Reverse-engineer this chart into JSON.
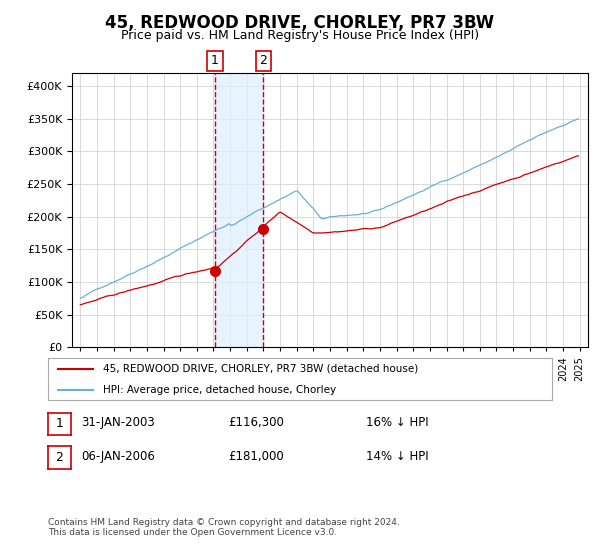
{
  "title": "45, REDWOOD DRIVE, CHORLEY, PR7 3BW",
  "subtitle": "Price paid vs. HM Land Registry's House Price Index (HPI)",
  "legend_line1": "45, REDWOOD DRIVE, CHORLEY, PR7 3BW (detached house)",
  "legend_line2": "HPI: Average price, detached house, Chorley",
  "transaction1_label": "1",
  "transaction1_date": "31-JAN-2003",
  "transaction1_price": 116300,
  "transaction1_hpi": "16% ↓ HPI",
  "transaction2_label": "2",
  "transaction2_date": "06-JAN-2006",
  "transaction2_price": 181000,
  "transaction2_hpi": "14% ↓ HPI",
  "footnote": "Contains HM Land Registry data © Crown copyright and database right 2024.\nThis data is licensed under the Open Government Licence v3.0.",
  "hpi_color": "#6baed6",
  "price_color": "#cc0000",
  "marker_color": "#cc0000",
  "vline_color": "#cc0000",
  "shade_color": "#ddeeff",
  "box_color": "#cc0000",
  "ylim": [
    0,
    420000
  ],
  "yticks": [
    0,
    50000,
    100000,
    150000,
    200000,
    250000,
    300000,
    350000,
    400000
  ],
  "background_color": "#f5f5f5",
  "plot_bg_color": "#ffffff"
}
